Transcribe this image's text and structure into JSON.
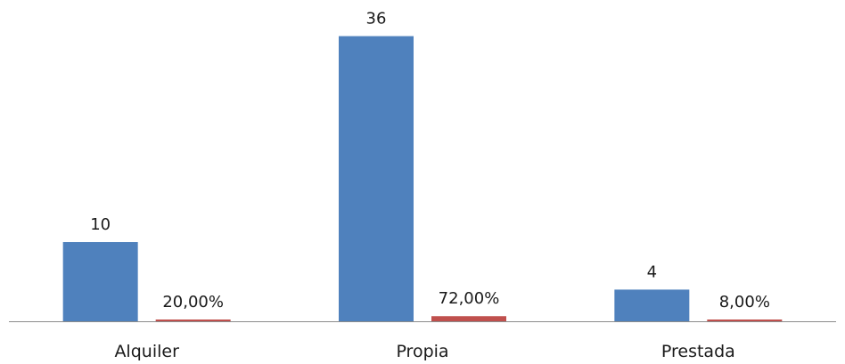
{
  "chart_data": {
    "type": "bar",
    "title": "",
    "xlabel": "",
    "ylabel": "",
    "categories": [
      "Alquiler",
      "Propia",
      "Prestada"
    ],
    "series": [
      {
        "values": [
          10,
          36,
          4
        ],
        "labels": [
          "10",
          "36",
          "4"
        ],
        "color": "#4f81bd"
      },
      {
        "values": [
          0.2,
          0.72,
          0.08
        ],
        "labels": [
          "20,00%",
          "72,00%",
          "8,00%"
        ],
        "color": "#c0504d"
      }
    ],
    "grid": false,
    "legend": "none"
  }
}
